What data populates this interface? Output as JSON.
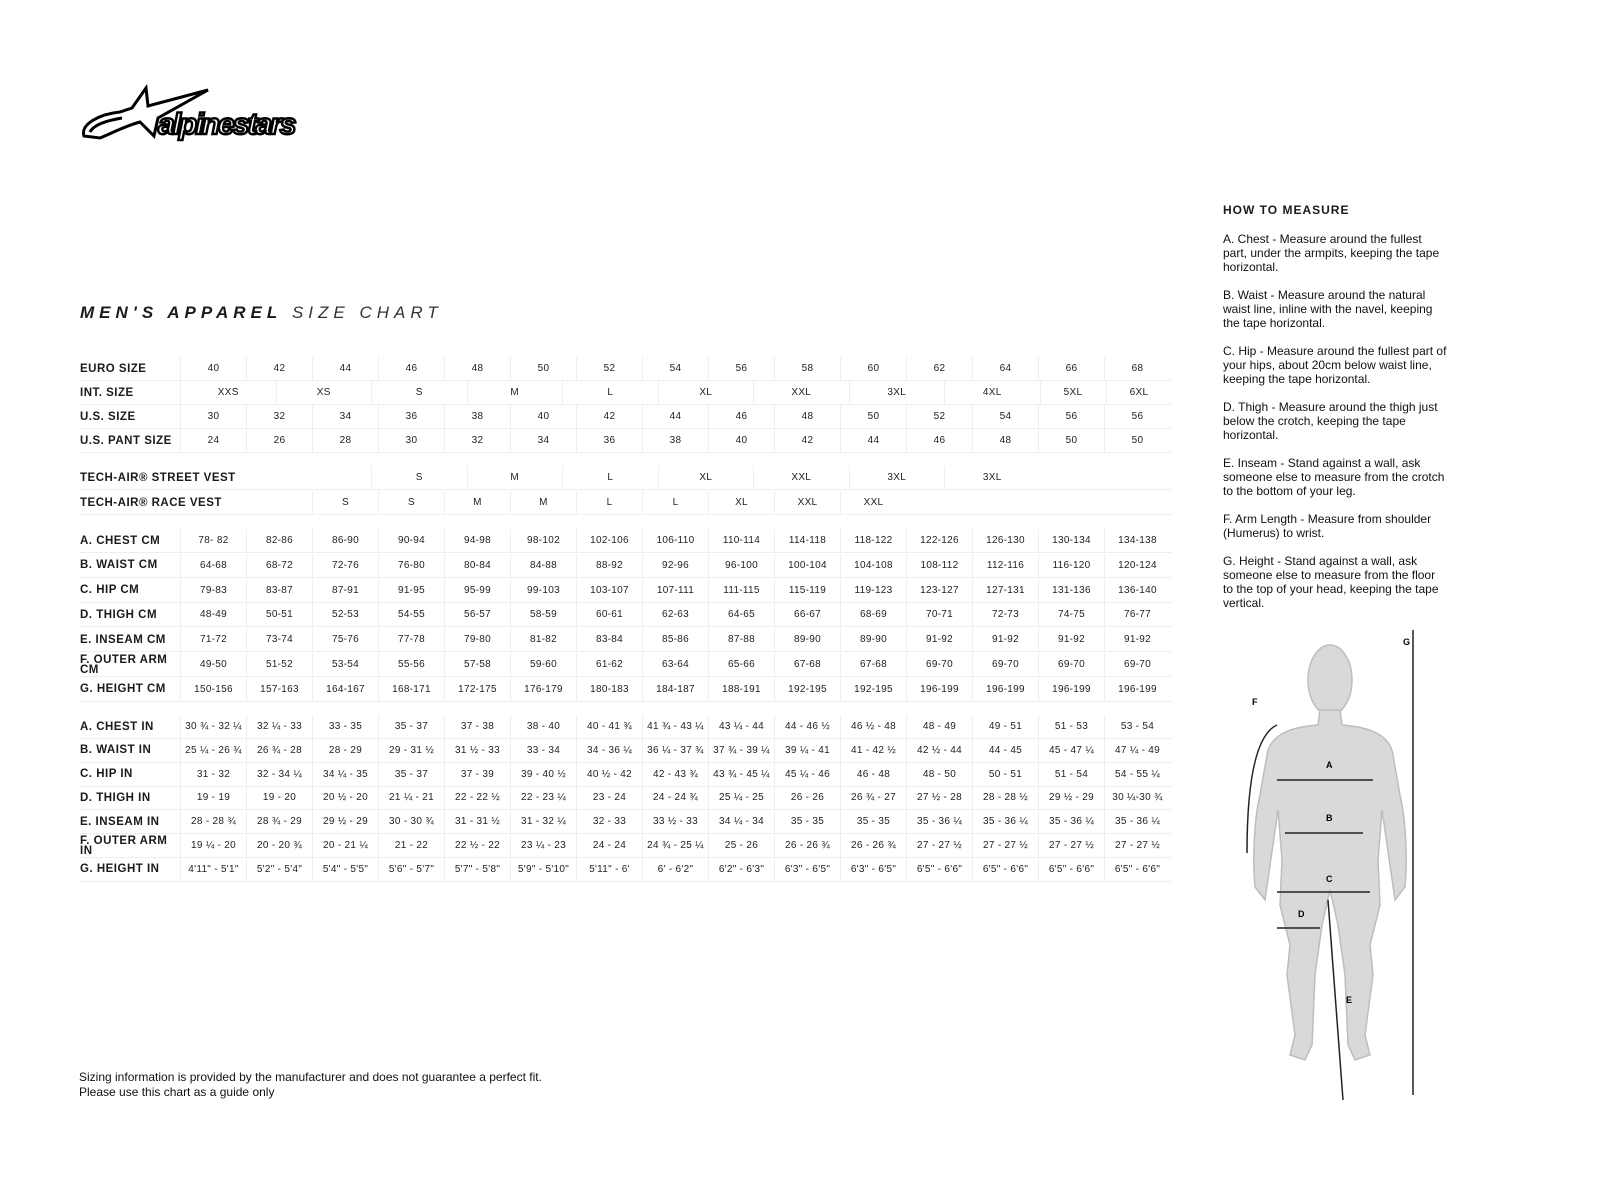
{
  "brand": {
    "logo_text": "alpinestars"
  },
  "title": {
    "bold": "MEN'S APPAREL",
    "light": "SIZE CHART"
  },
  "table": {
    "euro": {
      "label": "EURO SIZE",
      "values": [
        "40",
        "42",
        "44",
        "46",
        "48",
        "50",
        "52",
        "54",
        "56",
        "58",
        "60",
        "62",
        "64",
        "66",
        "68"
      ]
    },
    "int": {
      "label": "INT. SIZE",
      "values": [
        "XXS",
        "XS",
        "S",
        "M",
        "L",
        "XL",
        "XXL",
        "3XL",
        "4XL",
        "5XL",
        "6XL"
      ]
    },
    "us": {
      "label": "U.S. SIZE",
      "values": [
        "30",
        "32",
        "34",
        "36",
        "38",
        "40",
        "42",
        "44",
        "46",
        "48",
        "50",
        "52",
        "54",
        "56",
        "56"
      ]
    },
    "pant": {
      "label": "U.S. PANT SIZE",
      "values": [
        "24",
        "26",
        "28",
        "30",
        "32",
        "34",
        "36",
        "38",
        "40",
        "42",
        "44",
        "46",
        "48",
        "50",
        "50"
      ]
    },
    "street_vest": {
      "label": "TECH-AIR® STREET VEST",
      "values": [
        "S",
        "M",
        "L",
        "XL",
        "XXL",
        "3XL",
        "3XL"
      ]
    },
    "race_vest": {
      "label": "TECH-AIR® RACE VEST",
      "values": [
        "S",
        "S",
        "M",
        "M",
        "L",
        "L",
        "XL",
        "XXL",
        "XXL"
      ]
    },
    "cm": [
      {
        "label": "A. CHEST CM",
        "values": [
          "78- 82",
          "82-86",
          "86-90",
          "90-94",
          "94-98",
          "98-102",
          "102-106",
          "106-110",
          "110-114",
          "114-118",
          "118-122",
          "122-126",
          "126-130",
          "130-134",
          "134-138"
        ]
      },
      {
        "label": "B. WAIST CM",
        "values": [
          "64-68",
          "68-72",
          "72-76",
          "76-80",
          "80-84",
          "84-88",
          "88-92",
          "92-96",
          "96-100",
          "100-104",
          "104-108",
          "108-112",
          "112-116",
          "116-120",
          "120-124"
        ]
      },
      {
        "label": "C. HIP CM",
        "values": [
          "79-83",
          "83-87",
          "87-91",
          "91-95",
          "95-99",
          "99-103",
          "103-107",
          "107-111",
          "111-115",
          "115-119",
          "119-123",
          "123-127",
          "127-131",
          "131-136",
          "136-140"
        ]
      },
      {
        "label": "D. THIGH CM",
        "values": [
          "48-49",
          "50-51",
          "52-53",
          "54-55",
          "56-57",
          "58-59",
          "60-61",
          "62-63",
          "64-65",
          "66-67",
          "68-69",
          "70-71",
          "72-73",
          "74-75",
          "76-77"
        ]
      },
      {
        "label": "E. INSEAM CM",
        "values": [
          "71-72",
          "73-74",
          "75-76",
          "77-78",
          "79-80",
          "81-82",
          "83-84",
          "85-86",
          "87-88",
          "89-90",
          "89-90",
          "91-92",
          "91-92",
          "91-92",
          "91-92"
        ]
      },
      {
        "label": "F. OUTER ARM CM",
        "values": [
          "49-50",
          "51-52",
          "53-54",
          "55-56",
          "57-58",
          "59-60",
          "61-62",
          "63-64",
          "65-66",
          "67-68",
          "67-68",
          "69-70",
          "69-70",
          "69-70",
          "69-70"
        ]
      },
      {
        "label": "G. HEIGHT CM",
        "values": [
          "150-156",
          "157-163",
          "164-167",
          "168-171",
          "172-175",
          "176-179",
          "180-183",
          "184-187",
          "188-191",
          "192-195",
          "192-195",
          "196-199",
          "196-199",
          "196-199",
          "196-199"
        ]
      }
    ],
    "in": [
      {
        "label": "A. CHEST IN",
        "values": [
          "30 ¾ - 32 ¼",
          "32 ¼ - 33",
          "33  - 35",
          "35  - 37",
          "37 - 38",
          "38  - 40",
          "40  - 41 ¾",
          "41 ¾ - 43 ¼",
          "43 ¼ - 44",
          "44  - 46 ½",
          "46 ½ - 48",
          "48 - 49",
          "49  - 51",
          "51 - 53",
          "53  - 54"
        ]
      },
      {
        "label": "B. WAIST IN",
        "values": [
          "25 ¼ - 26 ¾",
          "26 ¾ - 28",
          "28  - 29",
          "29  - 31 ½",
          "31 ½ - 33",
          "33  - 34",
          "34  - 36 ¼",
          "36 ¼ - 37 ¾",
          "37 ¾ - 39 ¼",
          "39 ¼ - 41",
          "41 - 42 ½",
          "42 ½ - 44",
          "44  - 45",
          "45  - 47 ¼",
          "47 ¼ - 49"
        ]
      },
      {
        "label": "C. HIP IN",
        "values": [
          "31  - 32",
          "32  - 34 ¼",
          "34 ¼ - 35",
          "35  - 37",
          "37  - 39",
          "39 - 40 ½",
          "40 ½ - 42",
          "42  - 43 ¾",
          "43 ¾ - 45 ¼",
          "45 ¼ - 46",
          "46  - 48",
          "48  - 50",
          "50 - 51",
          "51  - 54",
          "54  - 55 ¼"
        ]
      },
      {
        "label": "D. THIGH IN",
        "values": [
          "19  - 19",
          "19  - 20",
          "20 ½ - 20",
          "21 ¼ - 21",
          "22 - 22 ½",
          "22  - 23 ¼",
          "23  - 24",
          "24  - 24 ¾",
          "25 ¼ - 25",
          "26 - 26",
          "26 ¾ - 27",
          "27 ½ - 28",
          "28  - 28 ½",
          "29 ½ - 29",
          "30 ¼-30 ¾"
        ]
      },
      {
        "label": "E. INSEAM IN",
        "values": [
          "28 - 28 ¾",
          "28 ¾ - 29",
          "29 ½ - 29",
          "30  - 30 ¾",
          "31  - 31 ½",
          "31  - 32 ¼",
          "32  - 33",
          "33 ½ - 33",
          "34 ¼ - 34",
          "35 - 35",
          "35 - 35",
          "35  - 36 ¼",
          "35  - 36 ¼",
          "35  - 36 ¼",
          "35  - 36 ¼"
        ]
      },
      {
        "label": "F. OUTER ARM IN",
        "values": [
          "19 ¼ - 20",
          "20  - 20 ¾",
          "20  - 21 ¼",
          "21  - 22",
          "22 ½ - 22",
          "23 ¼ - 23",
          "24 - 24",
          "24 ¾ - 25 ¼",
          "25  - 26",
          "26  - 26 ¾",
          "26  - 26 ¾",
          "27  - 27 ½",
          "27  - 27 ½",
          "27  - 27 ½",
          "27  - 27 ½"
        ]
      },
      {
        "label": "G. HEIGHT IN",
        "values": [
          "4'11\" - 5'1\"",
          "5'2\" - 5'4\"",
          "5'4\" - 5'5\"",
          "5'6\" - 5'7\"",
          "5'7\" - 5'8\"",
          "5'9\" - 5'10\"",
          "5'11\" - 6'",
          "6' - 6'2\"",
          "6'2\" - 6'3\"",
          "6'3\" - 6'5\"",
          "6'3\" - 6'5\"",
          "6'5\" - 6'6\"",
          "6'5\" - 6'6\"",
          "6'5\" - 6'6\"",
          "6'5\" - 6'6\""
        ]
      }
    ]
  },
  "how_to_measure": {
    "heading": "HOW TO MEASURE",
    "items": [
      "A. Chest - Measure around the fullest part, under the armpits, keeping the tape horizontal.",
      "B. Waist - Measure around the natural waist line, inline with the navel, keeping the tape horizontal.",
      "C. Hip - Measure around the fullest part of your hips, about 20cm below waist line, keeping the tape horizontal.",
      "D. Thigh - Measure around the thigh just below the crotch, keeping the tape horizontal.",
      "E. Inseam - Stand against a wall, ask someone else to measure from the crotch to the bottom of your leg.",
      "F. Arm Length - Measure from shoulder (Humerus) to wrist.",
      "G. Height - Stand against a wall, ask someone else to measure from the floor to the top of your head, keeping the tape vertical."
    ]
  },
  "figure": {
    "labels": {
      "a": "A",
      "b": "B",
      "c": "C",
      "d": "D",
      "e": "E",
      "f": "F",
      "g": "G"
    },
    "body_color": "#d9d9d9"
  },
  "disclaimer": [
    "Sizing information is provided by the manufacturer and does not guarantee a perfect fit.",
    "Please use this chart as a guide only"
  ]
}
